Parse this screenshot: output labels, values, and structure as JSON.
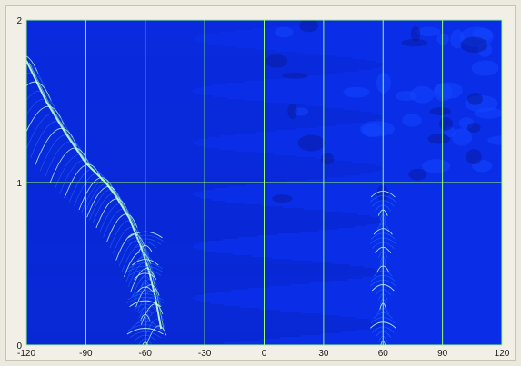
{
  "chart_data": {
    "type": "heatmap",
    "title": "",
    "xlabel": "",
    "ylabel": "",
    "xlim": [
      -120,
      120
    ],
    "ylim": [
      0,
      2
    ],
    "x_ticks": [
      "-120",
      "-90",
      "-60",
      "-30",
      "0",
      "30",
      "60",
      "90",
      "120"
    ],
    "y_ticks": [
      "0",
      "1",
      "2"
    ],
    "x_tick_values": [
      -120,
      -90,
      -60,
      -30,
      0,
      30,
      60,
      90,
      120
    ],
    "y_tick_values": [
      0,
      1,
      2
    ],
    "grid": true,
    "colors": {
      "background": "#0a2de8",
      "band_dark": "#061a9a",
      "band_mid": "#1446ff",
      "grid": "#9cff6a",
      "highlight": "#c8ffe8",
      "trace": "#1d6cff"
    },
    "features": [
      {
        "name": "",
        "shape": "curved ridge",
        "points": [
          [
            -120,
            1.75
          ],
          [
            -110,
            1.5
          ],
          [
            -100,
            1.3
          ],
          [
            -90,
            1.12
          ],
          [
            -80,
            1.0
          ],
          [
            -75,
            0.92
          ],
          [
            -68,
            0.78
          ],
          [
            -62,
            0.6
          ],
          [
            -58,
            0.45
          ],
          [
            -55,
            0.3
          ],
          [
            -52,
            0.1
          ]
        ]
      },
      {
        "name": "",
        "shape": "arc cluster",
        "center_x": -60,
        "range_y": [
          0,
          0.7
        ]
      },
      {
        "name": "",
        "shape": "arc cluster",
        "center_x": 60,
        "range_y": [
          0,
          0.95
        ]
      }
    ]
  }
}
